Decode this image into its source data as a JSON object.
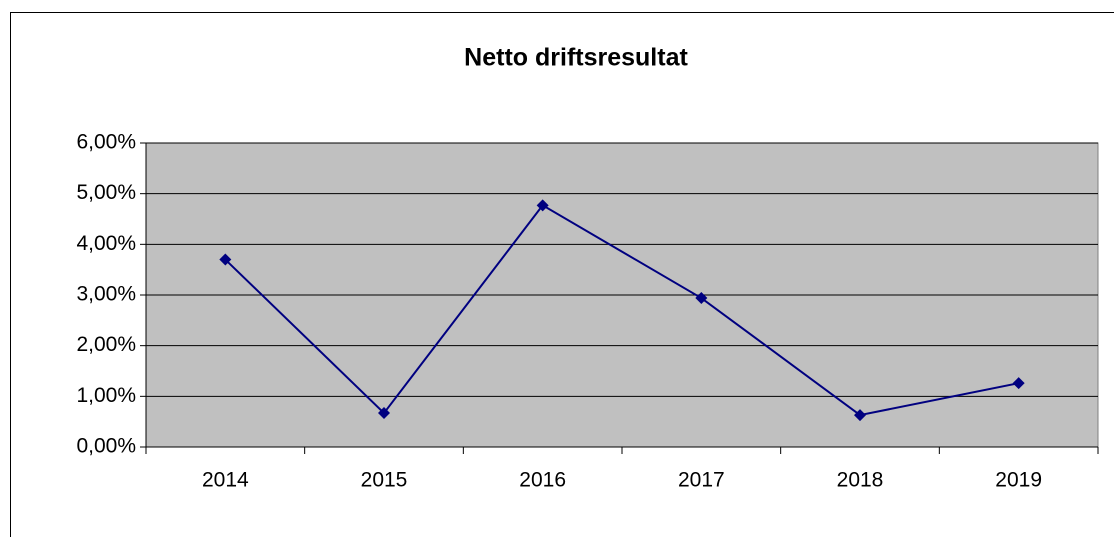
{
  "chart_data": {
    "type": "line",
    "title": "Netto driftsresultat",
    "categories": [
      "2014",
      "2015",
      "2016",
      "2017",
      "2018",
      "2019"
    ],
    "values": [
      3.7,
      0.67,
      4.77,
      2.94,
      0.63,
      1.26
    ],
    "color": "#000080",
    "ylim": [
      0,
      6
    ],
    "yticks": [
      {
        "value": 0,
        "label": "0,00%"
      },
      {
        "value": 1,
        "label": "1,00%"
      },
      {
        "value": 2,
        "label": "2,00%"
      },
      {
        "value": 3,
        "label": "3,00%"
      },
      {
        "value": 4,
        "label": "4,00%"
      },
      {
        "value": 5,
        "label": "5,00%"
      },
      {
        "value": 6,
        "label": "6,00%"
      }
    ],
    "grid": true
  }
}
